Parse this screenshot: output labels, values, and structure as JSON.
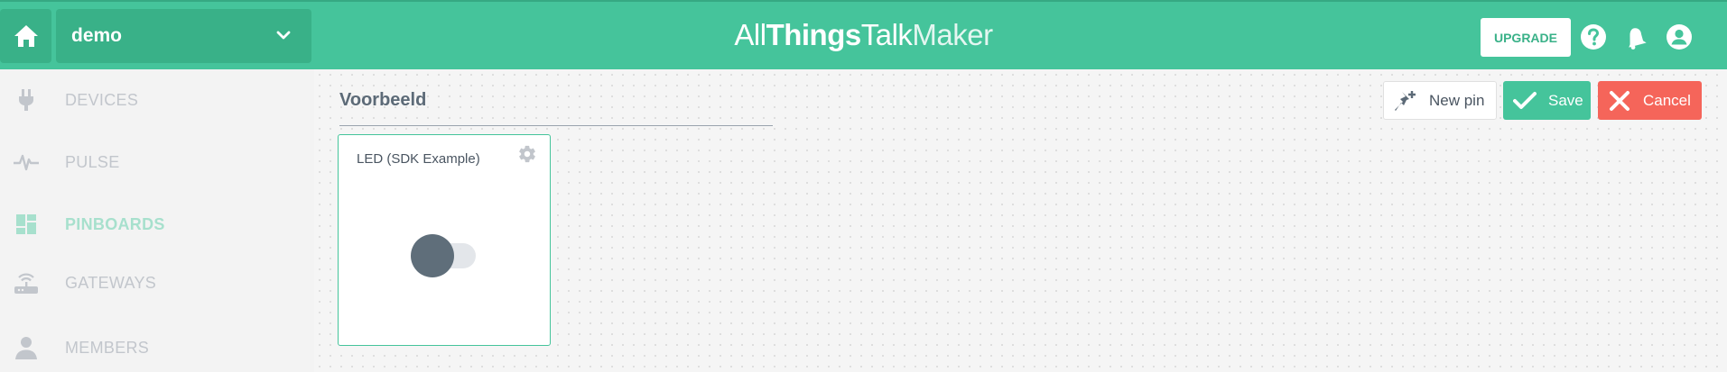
{
  "header": {
    "ground_name": "demo",
    "brand_parts": [
      "All",
      "Things",
      "Talk",
      "Maker"
    ],
    "upgrade_label": "UPGRADE",
    "icons": [
      "home-icon",
      "chevron-down-icon",
      "help-icon",
      "notifications-bell-icon",
      "account-icon"
    ]
  },
  "sidebar": {
    "items": [
      {
        "label": "DEVICES",
        "icon": "plug-icon",
        "active": false
      },
      {
        "label": "PULSE",
        "icon": "pulse-icon",
        "active": false
      },
      {
        "label": "PINBOARDS",
        "icon": "dashboard-icon",
        "active": true
      },
      {
        "label": "GATEWAYS",
        "icon": "router-icon",
        "active": false
      },
      {
        "label": "MEMBERS",
        "icon": "person-icon",
        "active": false
      }
    ]
  },
  "board": {
    "title": "Voorbeeld",
    "toolbar": {
      "new_pin_label": "New pin",
      "save_label": "Save",
      "cancel_label": "Cancel"
    },
    "pins": [
      {
        "name": "LED (SDK Example)",
        "control": "toggle",
        "state": "off"
      }
    ]
  },
  "colors": {
    "brand_green": "#45c49b",
    "dark_green": "#39b188",
    "cancel_red": "#f5655a",
    "knob_gray": "#5f6e7a"
  }
}
